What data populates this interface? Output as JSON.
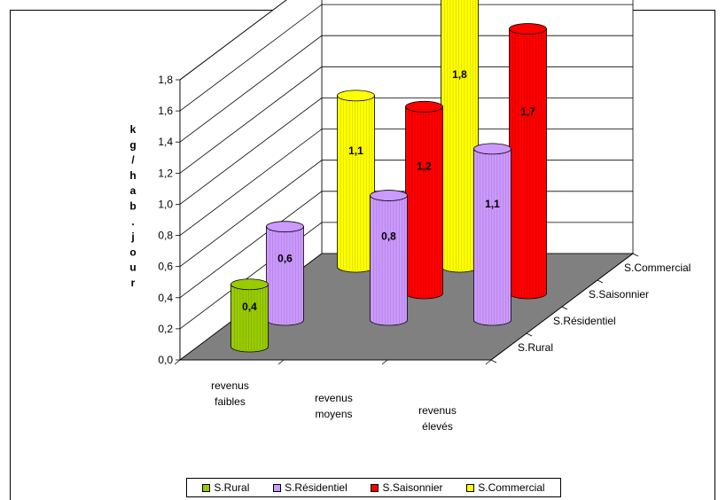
{
  "chart_data": {
    "type": "bar",
    "subtype": "3d-cylinder",
    "title": "",
    "ylabel": "kg/hab.jour",
    "ylim": [
      0,
      1.8
    ],
    "y_ticks": [
      "0,0",
      "0,2",
      "0,4",
      "0,6",
      "0,8",
      "1,0",
      "1,2",
      "1,4",
      "1,6",
      "1,8"
    ],
    "categories": [
      "revenus faibles",
      "revenus moyens",
      "revenus élevés"
    ],
    "category_lines": [
      [
        "revenus",
        "faibles"
      ],
      [
        "revenus",
        "moyens"
      ],
      [
        "revenus",
        "élevés"
      ]
    ],
    "series": [
      {
        "name": "S.Rural",
        "color": "#99cc00",
        "values": [
          0.4,
          null,
          null
        ],
        "labels": [
          "0,4",
          "",
          ""
        ]
      },
      {
        "name": "S.Résidentiel",
        "color": "#cc99ff",
        "values": [
          0.6,
          0.8,
          1.1
        ],
        "labels": [
          "0,6",
          "0,8",
          "1,1"
        ]
      },
      {
        "name": "S.Saisonnier",
        "color": "#ff0000",
        "values": [
          null,
          1.2,
          1.7
        ],
        "labels": [
          "",
          "1,2",
          "1,7"
        ]
      },
      {
        "name": "S.Commercial",
        "color": "#ffff00",
        "values": [
          1.1,
          1.8,
          null
        ],
        "labels": [
          "1,1",
          "1,8",
          ""
        ]
      }
    ],
    "grid": true,
    "floor_color": "#808080",
    "legend_position": "bottom"
  }
}
